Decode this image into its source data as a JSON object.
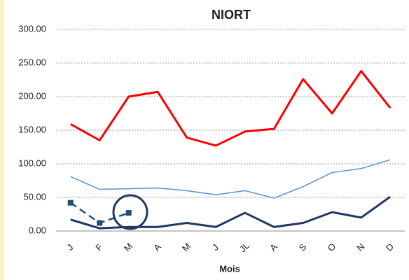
{
  "chart_data": {
    "type": "line",
    "title": "NIORT",
    "x_label": "Mois",
    "categories": [
      "J",
      "F",
      "M",
      "A",
      "M",
      "J",
      "JL",
      "A",
      "S",
      "O",
      "N",
      "D"
    ],
    "series": [
      {
        "color": "#ff0000",
        "width": 3,
        "values": [
          159,
          135,
          200,
          207,
          139,
          127,
          148,
          152,
          226,
          175,
          238,
          183
        ]
      },
      {
        "color": "#5b9bd5",
        "width": 1.6,
        "values": [
          81,
          62,
          63,
          64,
          60,
          54,
          60,
          49,
          66,
          87,
          93,
          106
        ]
      },
      {
        "color": "#1f3864",
        "width": 3,
        "values": [
          17,
          4,
          6,
          6,
          12,
          6,
          27,
          6,
          12,
          28,
          20,
          51
        ]
      },
      {
        "color": "#1f4e79",
        "width": 2.5,
        "dashed": true,
        "marker": "square",
        "values": [
          42,
          12,
          27,
          null,
          null,
          null,
          null,
          null,
          null,
          null,
          null,
          null
        ]
      }
    ],
    "ylim": [
      0,
      300
    ],
    "yticks": [
      {
        "value": 0,
        "label": "0.00"
      },
      {
        "value": 50,
        "label": "50.00"
      },
      {
        "value": 100,
        "label": "100.00"
      },
      {
        "value": 150,
        "label": "150.00"
      },
      {
        "value": 200,
        "label": "200.00"
      },
      {
        "value": 250,
        "label": "250.00"
      },
      {
        "value": 300,
        "label": "300.00"
      }
    ],
    "grid": true
  }
}
